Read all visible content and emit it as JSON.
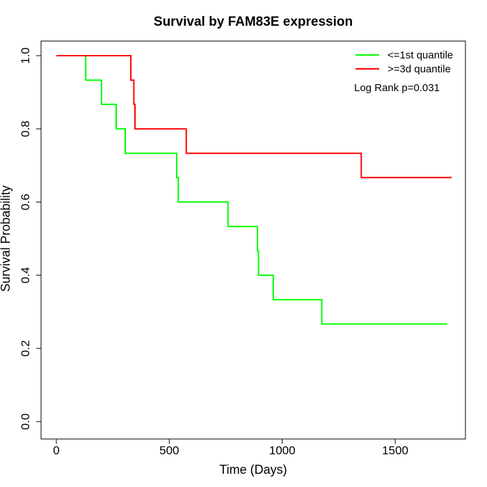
{
  "chart_data": {
    "type": "line",
    "title": "Survival by FAM83E expression",
    "xlabel": "Time (Days)",
    "ylabel": "Survival Probability",
    "xlim": [
      0,
      1800
    ],
    "ylim": [
      0,
      1.0
    ],
    "x_ticks": [
      0,
      500,
      1000,
      1500
    ],
    "y_ticks": [
      0.0,
      0.2,
      0.4,
      0.6,
      0.8,
      1.0
    ],
    "x_tick_labels": [
      "0",
      "500",
      "1000",
      "1500"
    ],
    "y_tick_labels": [
      "0.0",
      "0.2",
      "0.4",
      "0.6",
      "0.8",
      "1.0"
    ],
    "legend_position": "top-right",
    "annotation": "Log Rank p=0.031",
    "grid": false,
    "series": [
      {
        "name": "<=1st quantile",
        "color": "#00ff00",
        "x": [
          0,
          130,
          130,
          200,
          200,
          265,
          265,
          305,
          305,
          533,
          533,
          540,
          540,
          760,
          760,
          890,
          890,
          895,
          895,
          960,
          960,
          1175,
          1175,
          1730
        ],
        "y": [
          1.0,
          1.0,
          0.933,
          0.933,
          0.867,
          0.867,
          0.8,
          0.8,
          0.733,
          0.733,
          0.667,
          0.667,
          0.6,
          0.6,
          0.533,
          0.533,
          0.467,
          0.467,
          0.4,
          0.4,
          0.333,
          0.333,
          0.267,
          0.267
        ]
      },
      {
        "name": ">=3d quantile",
        "color": "#ff0000",
        "x": [
          0,
          330,
          330,
          343,
          343,
          348,
          348,
          575,
          575,
          1350,
          1350,
          1750
        ],
        "y": [
          1.0,
          1.0,
          0.933,
          0.933,
          0.867,
          0.867,
          0.8,
          0.8,
          0.733,
          0.733,
          0.667,
          0.667
        ]
      }
    ]
  }
}
